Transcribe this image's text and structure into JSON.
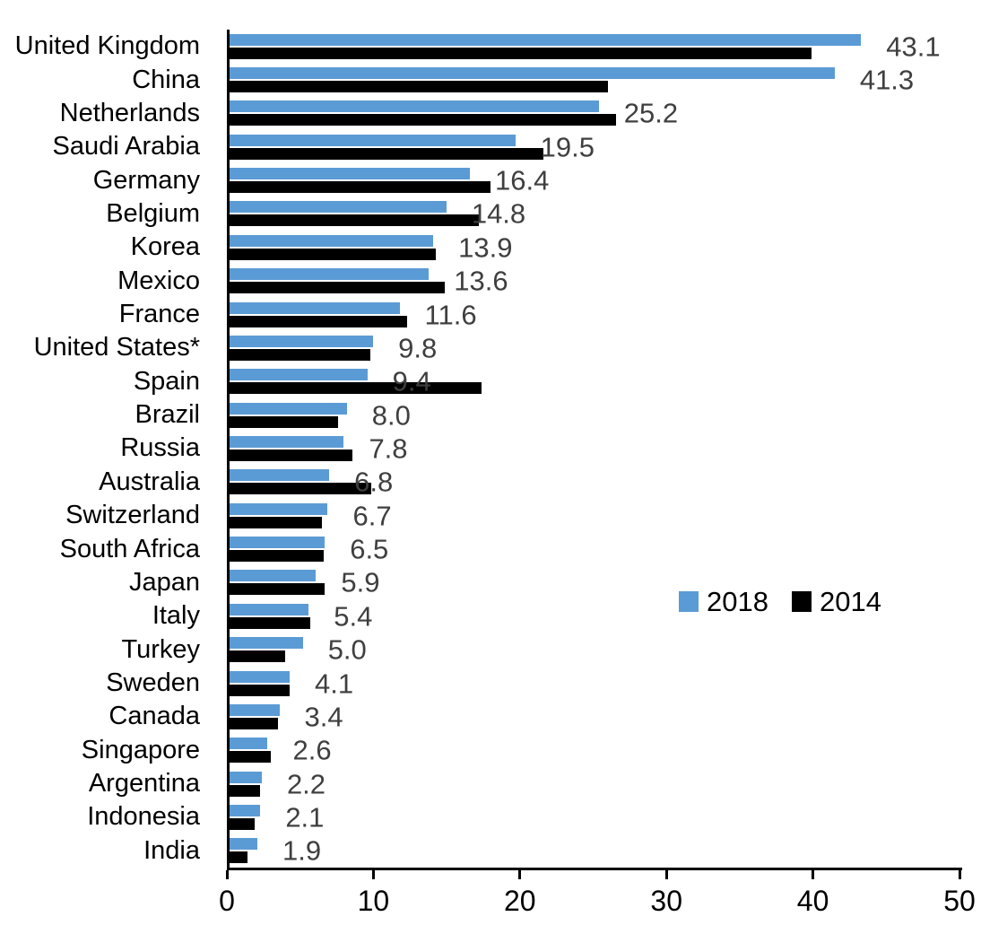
{
  "chart_data": {
    "type": "bar",
    "orientation": "horizontal",
    "title": "",
    "xlabel": "",
    "ylabel": "",
    "xlim": [
      0,
      50
    ],
    "x_ticks": [
      0,
      10,
      20,
      30,
      40,
      50
    ],
    "x_tick_labels": [
      "0",
      "10",
      "20",
      "30",
      "40",
      "50"
    ],
    "grid": false,
    "legend": {
      "position": "center-right",
      "entries": [
        "2018",
        "2014"
      ]
    },
    "categories": [
      "United Kingdom",
      "China",
      "Netherlands",
      "Saudi Arabia",
      "Germany",
      "Belgium",
      "Korea",
      "Mexico",
      "France",
      "United States*",
      "Spain",
      "Brazil",
      "Russia",
      "Australia",
      "Switzerland",
      "South Africa",
      "Japan",
      "Italy",
      "Turkey",
      "Sweden",
      "Canada",
      "Singapore",
      "Argentina",
      "Indonesia",
      "India"
    ],
    "series": [
      {
        "name": "2018",
        "color": "#5B9BD5",
        "values": [
          43.1,
          41.3,
          25.2,
          19.5,
          16.4,
          14.8,
          13.9,
          13.6,
          11.6,
          9.8,
          9.4,
          8.0,
          7.8,
          6.8,
          6.7,
          6.5,
          5.9,
          5.4,
          5.0,
          4.1,
          3.4,
          2.6,
          2.2,
          2.1,
          1.9
        ]
      },
      {
        "name": "2014",
        "color": "#000000",
        "values": [
          39.7,
          25.8,
          26.4,
          21.4,
          17.8,
          17.0,
          14.1,
          14.7,
          12.1,
          9.6,
          17.2,
          7.4,
          8.4,
          9.7,
          6.3,
          6.4,
          6.5,
          5.5,
          3.8,
          4.1,
          3.3,
          2.8,
          2.1,
          1.7,
          1.2
        ]
      }
    ],
    "data_labels": {
      "series": "2018",
      "color": "#3F3F3F",
      "values": [
        "43.1",
        "41.3",
        "25.2",
        "19.5",
        "16.4",
        "14.8",
        "13.9",
        "13.6",
        "11.6",
        "9.8",
        "9.4",
        "8.0",
        "7.8",
        "6.8",
        "6.7",
        "6.5",
        "5.9",
        "5.4",
        "5.0",
        "4.1",
        "3.4",
        "2.6",
        "2.2",
        "2.1",
        "1.9"
      ]
    }
  },
  "colors": {
    "series_2018": "#5B9BD5",
    "series_2014": "#000000",
    "axis": "#000000",
    "value_label": "#3F3F3F",
    "background": "#FFFFFF"
  },
  "legend": {
    "label_2018": "2018",
    "label_2014": "2014"
  }
}
